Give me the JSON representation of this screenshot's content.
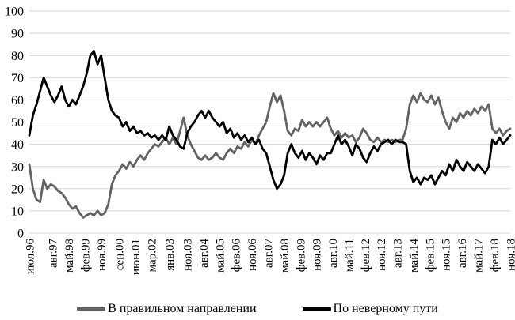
{
  "chart_data": {
    "type": "line",
    "title": "",
    "xlabel": "",
    "ylabel": "",
    "x_unit": "months since июл.96",
    "xlim": [
      0,
      268
    ],
    "ylim": [
      0,
      100
    ],
    "y_ticks": [
      0,
      10,
      20,
      30,
      40,
      50,
      60,
      70,
      80,
      90,
      100
    ],
    "grid": "horizontal",
    "gridline_color": "#d6d6d6",
    "axis_text_color": "#000000",
    "legend_position": "bottom",
    "x_tick_positions": [
      0,
      13,
      22,
      31,
      40,
      50,
      59,
      68,
      78,
      88,
      97,
      106,
      115,
      124,
      133,
      142,
      151,
      160,
      169,
      178,
      187,
      196,
      205,
      214,
      223,
      232,
      241,
      250,
      259,
      268
    ],
    "x_tick_labels": [
      "июл.96",
      "авг.97",
      "май.98",
      "фев.99",
      "ноя.99",
      "сен.00",
      "июн.01",
      "мар.02",
      "янв.03",
      "ноя.03",
      "авг.04",
      "май.05",
      "фев.06",
      "ноя.06",
      "авг.07",
      "май.08",
      "фев.09",
      "ноя.09",
      "авг.10",
      "май.11",
      "фев.12",
      "ноя.12",
      "авг.13",
      "май.14",
      "фев.15",
      "ноя.15",
      "авг.16",
      "май.17",
      "фев.18",
      "ноя.18"
    ],
    "x": [
      0,
      2,
      4,
      6,
      8,
      10,
      12,
      14,
      16,
      18,
      20,
      22,
      24,
      26,
      28,
      30,
      32,
      34,
      36,
      38,
      40,
      42,
      44,
      46,
      48,
      50,
      52,
      54,
      56,
      58,
      60,
      62,
      64,
      66,
      68,
      70,
      72,
      74,
      76,
      78,
      80,
      82,
      84,
      86,
      88,
      90,
      92,
      94,
      96,
      98,
      100,
      102,
      104,
      106,
      108,
      110,
      112,
      114,
      116,
      118,
      120,
      122,
      124,
      126,
      128,
      130,
      132,
      134,
      136,
      138,
      140,
      142,
      144,
      146,
      148,
      150,
      152,
      154,
      156,
      158,
      160,
      162,
      164,
      166,
      168,
      170,
      172,
      174,
      176,
      178,
      180,
      182,
      184,
      186,
      188,
      190,
      192,
      194,
      196,
      198,
      200,
      202,
      204,
      206,
      208,
      210,
      212,
      214,
      216,
      218,
      220,
      222,
      224,
      226,
      228,
      230,
      232,
      234,
      236,
      238,
      240,
      242,
      244,
      246,
      248,
      250,
      252,
      254,
      256,
      258,
      260,
      262,
      264,
      266,
      268
    ],
    "series": [
      {
        "name": "В правильном направлении",
        "color": "#636363",
        "stroke_width": 2.8,
        "values": [
          31,
          20,
          15,
          14,
          24,
          20,
          22,
          21,
          19,
          18,
          16,
          13,
          11,
          12,
          9,
          7,
          8,
          9,
          8,
          10,
          8,
          9,
          13,
          22,
          26,
          28,
          31,
          29,
          32,
          30,
          33,
          35,
          33,
          36,
          38,
          40,
          39,
          41,
          43,
          40,
          43,
          40,
          46,
          52,
          44,
          40,
          37,
          34,
          33,
          35,
          33,
          34,
          36,
          34,
          33,
          36,
          38,
          36,
          39,
          38,
          41,
          39,
          42,
          40,
          44,
          47,
          50,
          57,
          63,
          59,
          62,
          55,
          46,
          44,
          47,
          46,
          51,
          48,
          50,
          48,
          50,
          48,
          50,
          52,
          47,
          44,
          46,
          43,
          45,
          43,
          44,
          41,
          43,
          47,
          45,
          42,
          41,
          43,
          41,
          42,
          41,
          42,
          41,
          42,
          42,
          47,
          58,
          62,
          59,
          63,
          60,
          59,
          62,
          58,
          61,
          55,
          50,
          47,
          52,
          50,
          54,
          52,
          55,
          53,
          56,
          54,
          57,
          55,
          58,
          47,
          45,
          47,
          44,
          46,
          47
        ]
      },
      {
        "name": "По неверному пути",
        "color": "#000000",
        "stroke_width": 2.8,
        "values": [
          44,
          53,
          58,
          64,
          70,
          66,
          62,
          59,
          62,
          66,
          60,
          57,
          60,
          58,
          62,
          66,
          72,
          80,
          82,
          76,
          80,
          70,
          60,
          55,
          53,
          52,
          48,
          50,
          46,
          48,
          45,
          46,
          44,
          45,
          43,
          44,
          42,
          44,
          42,
          48,
          44,
          42,
          39,
          38,
          45,
          48,
          50,
          53,
          55,
          52,
          55,
          52,
          50,
          48,
          50,
          45,
          47,
          43,
          45,
          42,
          44,
          41,
          43,
          40,
          42,
          38,
          36,
          30,
          24,
          20,
          22,
          26,
          36,
          40,
          36,
          34,
          37,
          33,
          36,
          34,
          31,
          35,
          33,
          36,
          36,
          40,
          44,
          40,
          42,
          39,
          35,
          40,
          38,
          34,
          32,
          36,
          39,
          37,
          40,
          41,
          42,
          40,
          42,
          41,
          41,
          40,
          28,
          23,
          25,
          22,
          25,
          24,
          26,
          22,
          25,
          28,
          26,
          31,
          28,
          33,
          30,
          28,
          32,
          30,
          28,
          31,
          29,
          27,
          30,
          42,
          40,
          43,
          40,
          42,
          44
        ]
      }
    ]
  }
}
